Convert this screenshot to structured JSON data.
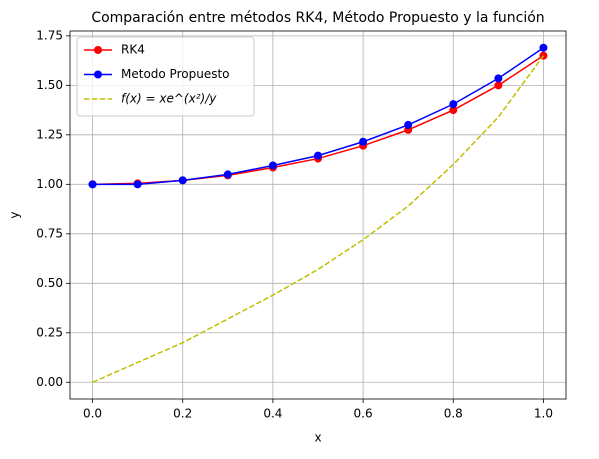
{
  "chart_data": {
    "type": "line",
    "title": "Comparación entre métodos RK4, Método Propuesto y la función",
    "xlabel": "x",
    "ylabel": "y",
    "x": [
      0.0,
      0.1,
      0.2,
      0.3,
      0.4,
      0.5,
      0.6,
      0.7,
      0.8,
      0.9,
      1.0
    ],
    "series": [
      {
        "name": "RK4",
        "color": "#ff0000",
        "style": "solid",
        "marker": true,
        "values": [
          1.0,
          1.005,
          1.02,
          1.045,
          1.085,
          1.13,
          1.195,
          1.275,
          1.375,
          1.5,
          1.65
        ]
      },
      {
        "name": "Metodo Propuesto",
        "color": "#0000ff",
        "style": "solid",
        "marker": true,
        "values": [
          1.0,
          1.0,
          1.02,
          1.05,
          1.095,
          1.145,
          1.215,
          1.3,
          1.405,
          1.535,
          1.69
        ]
      },
      {
        "name": "f(x) = xe^(x²)/y",
        "color": "#bfbf00",
        "style": "dashed",
        "marker": false,
        "values": [
          0.0,
          0.1,
          0.2,
          0.32,
          0.44,
          0.57,
          0.72,
          0.89,
          1.1,
          1.34,
          1.65
        ]
      }
    ],
    "xlim": [
      -0.05,
      1.05
    ],
    "ylim": [
      -0.0845,
      1.7745
    ],
    "xticks": [
      {
        "value": 0,
        "label": "0.0"
      },
      {
        "value": 0.2,
        "label": "0.2"
      },
      {
        "value": 0.4,
        "label": "0.4"
      },
      {
        "value": 0.6,
        "label": "0.6"
      },
      {
        "value": 0.8,
        "label": "0.8"
      },
      {
        "value": 1,
        "label": "1.0"
      }
    ],
    "yticks": [
      {
        "value": 0,
        "label": "0.00"
      },
      {
        "value": 0.25,
        "label": "0.25"
      },
      {
        "value": 0.5,
        "label": "0.50"
      },
      {
        "value": 0.75,
        "label": "0.75"
      },
      {
        "value": 1,
        "label": "1.00"
      },
      {
        "value": 1.25,
        "label": "1.25"
      },
      {
        "value": 1.5,
        "label": "1.50"
      },
      {
        "value": 1.75,
        "label": "1.75"
      }
    ],
    "grid": true,
    "legend": "upper left"
  }
}
